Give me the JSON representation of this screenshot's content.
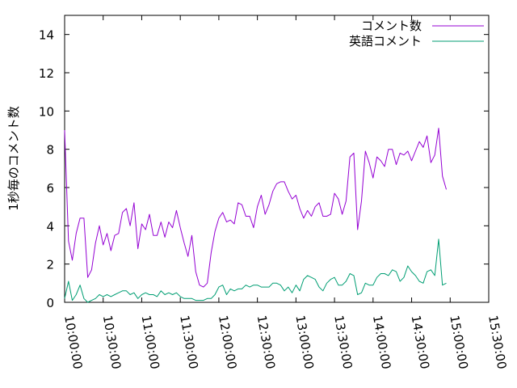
{
  "chart_data": {
    "type": "line",
    "ylabel": "1秒毎のコメント数",
    "ylim": [
      0,
      15
    ],
    "yticks": [
      0,
      2,
      4,
      6,
      8,
      10,
      12,
      14
    ],
    "xlim": [
      "10:00:00",
      "15:30:00"
    ],
    "xticks": [
      "10:00:00",
      "10:30:00",
      "11:00:00",
      "11:30:00",
      "12:00:00",
      "12:30:00",
      "13:00:00",
      "13:30:00",
      "14:00:00",
      "14:30:00",
      "15:00:00",
      "15:30:00"
    ],
    "grid": false,
    "legend_position": "top-right",
    "x_start": "10:00:00",
    "x_step": "00:03:00",
    "series": [
      {
        "name": "コメント数",
        "color": "#9400d3",
        "values": [
          9.0,
          3.2,
          2.2,
          3.6,
          4.4,
          4.4,
          1.3,
          1.7,
          3.1,
          4.0,
          3.0,
          3.6,
          2.7,
          3.5,
          3.6,
          4.7,
          4.9,
          4.0,
          5.2,
          2.8,
          4.1,
          3.8,
          4.6,
          3.5,
          3.5,
          4.2,
          3.4,
          4.2,
          3.9,
          4.8,
          3.9,
          3.1,
          2.4,
          3.5,
          1.6,
          0.9,
          0.8,
          1.0,
          2.6,
          3.7,
          4.4,
          4.7,
          4.2,
          4.3,
          4.1,
          5.2,
          5.1,
          4.5,
          4.5,
          3.9,
          5.0,
          5.6,
          4.6,
          5.1,
          5.8,
          6.2,
          6.3,
          6.3,
          5.8,
          5.4,
          5.6,
          4.9,
          4.4,
          4.8,
          4.5,
          5.0,
          5.2,
          4.5,
          4.5,
          4.6,
          5.7,
          5.4,
          4.6,
          5.3,
          7.6,
          7.8,
          3.8,
          5.3,
          7.9,
          7.3,
          6.5,
          7.6,
          7.4,
          7.1,
          8.0,
          8.0,
          7.2,
          7.8,
          7.7,
          7.9,
          7.4,
          7.9,
          8.4,
          8.1,
          8.7,
          7.3,
          7.7,
          9.1,
          6.6,
          5.9
        ]
      },
      {
        "name": "英語コメント",
        "color": "#009e73",
        "values": [
          0.2,
          1.1,
          0.1,
          0.4,
          0.9,
          0.2,
          0.0,
          0.1,
          0.2,
          0.4,
          0.3,
          0.4,
          0.3,
          0.4,
          0.5,
          0.6,
          0.6,
          0.4,
          0.5,
          0.2,
          0.4,
          0.5,
          0.4,
          0.4,
          0.3,
          0.6,
          0.4,
          0.5,
          0.4,
          0.5,
          0.3,
          0.2,
          0.2,
          0.2,
          0.1,
          0.1,
          0.1,
          0.2,
          0.2,
          0.4,
          0.8,
          0.9,
          0.4,
          0.7,
          0.6,
          0.7,
          0.7,
          0.9,
          0.8,
          0.9,
          0.9,
          0.8,
          0.8,
          0.8,
          1.0,
          1.0,
          0.9,
          0.6,
          0.8,
          0.5,
          0.9,
          0.6,
          1.2,
          1.4,
          1.3,
          1.2,
          0.8,
          0.6,
          1.0,
          1.2,
          1.3,
          0.9,
          0.9,
          1.1,
          1.5,
          1.4,
          0.4,
          0.5,
          1.0,
          0.9,
          0.9,
          1.3,
          1.5,
          1.5,
          1.4,
          1.7,
          1.6,
          1.1,
          1.3,
          1.9,
          1.6,
          1.4,
          1.1,
          1.0,
          1.6,
          1.7,
          1.4,
          3.3,
          0.9,
          1.0
        ]
      }
    ]
  }
}
